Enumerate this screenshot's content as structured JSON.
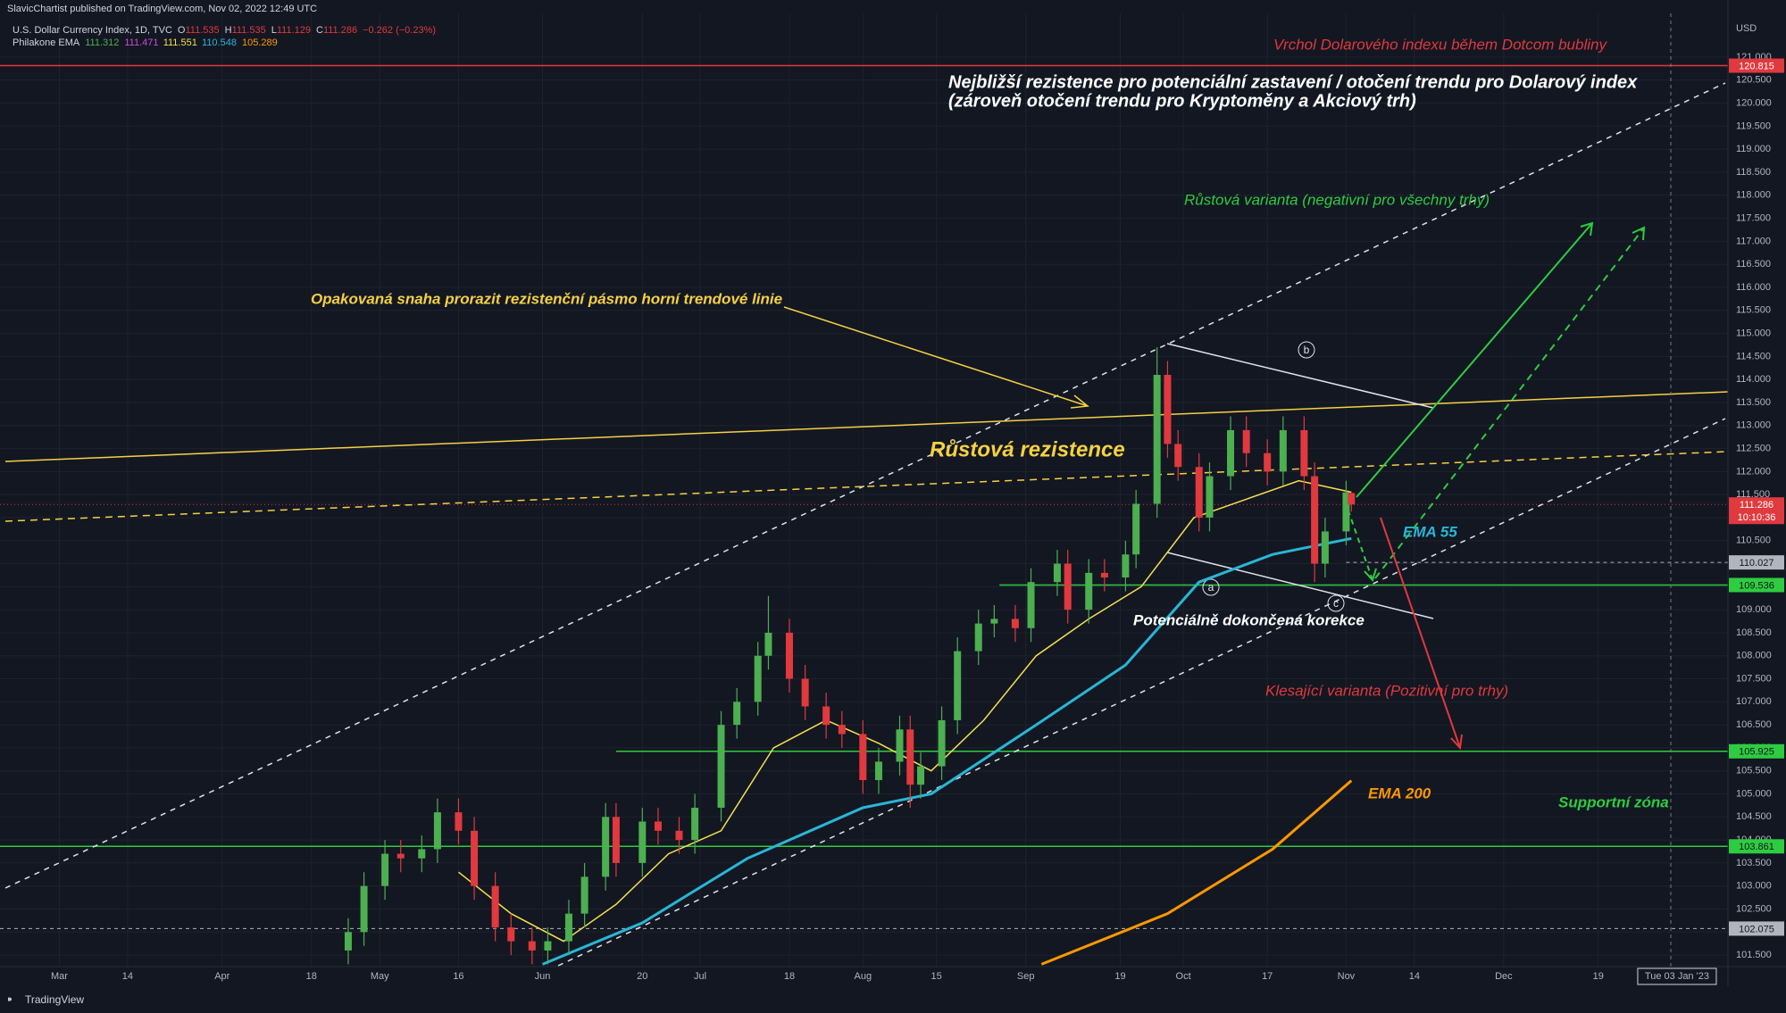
{
  "header": {
    "publisher": "SlavicChartist published on TradingView.com, Nov 02, 2022 12:49 UTC",
    "symbol": "U.S. Dollar Currency Index, 1D, TVC",
    "ohlc": [
      {
        "key": "O",
        "value": "111.535"
      },
      {
        "key": "H",
        "value": "111.535"
      },
      {
        "key": "L",
        "value": "111.129"
      },
      {
        "key": "C",
        "value": "111.286"
      }
    ],
    "change": "−0.262 (−0.23%)",
    "indicator": "Philakone EMA",
    "indicator_values": [
      {
        "text": "111.312",
        "color": "#4caf50"
      },
      {
        "text": "111.471",
        "color": "#c84ddb"
      },
      {
        "text": "111.551",
        "color": "#f5e050"
      },
      {
        "text": "110.548",
        "color": "#29b6d6"
      },
      {
        "text": "105.289",
        "color": "#ff9800"
      }
    ]
  },
  "currency": "USD",
  "footer": "TradingView",
  "waves": [
    "a",
    "b",
    "c"
  ],
  "annotations": [
    "Vrchol Dolarového indexu během Dotcom bubliny",
    "Nejbližší rezistence pro potenciální zastavení / otočení trendu pro Dolarový index",
    "(zároveň otočení trendu pro Kryptoměny a Akciový trh)",
    "Růstová varianta (negativní pro všechny trhy)",
    "Opakovaná snaha prorazit rezistenční pásmo horní trendové linie",
    "Růstová rezistence",
    "Potenciálně dokončená korekce",
    "Klesající varianta (Pozitivní pro trhy)",
    "Supportní zóna"
  ],
  "chart_data": {
    "type": "candlestick",
    "up_color": "#4caf50",
    "down_color": "#e0393e",
    "grid": true,
    "xlim": [
      47.7,
      376.7
    ],
    "ylim": [
      101.25,
      121.95
    ],
    "x": [
      114,
      117,
      121,
      124,
      128,
      131,
      135,
      138,
      142,
      145,
      149,
      152,
      156,
      159,
      163,
      165,
      170,
      173,
      177,
      180,
      185,
      188,
      192,
      194,
      198,
      201,
      205,
      208,
      212,
      215,
      219,
      221,
      223,
      227,
      230,
      234,
      237,
      241,
      244,
      249,
      251,
      255,
      258,
      262,
      264,
      268,
      270,
      272,
      276,
      278,
      282,
      285,
      289,
      292,
      296,
      298,
      300,
      304,
      305
    ],
    "open": [
      101.6,
      102.0,
      103.0,
      103.7,
      103.6,
      103.8,
      104.6,
      104.2,
      103.0,
      102.1,
      101.8,
      101.6,
      101.8,
      102.4,
      103.2,
      104.5,
      103.5,
      104.4,
      104.2,
      104.0,
      104.7,
      106.5,
      107.0,
      108.0,
      108.5,
      107.5,
      106.9,
      106.5,
      106.3,
      105.3,
      105.7,
      106.4,
      105.2,
      105.6,
      106.6,
      108.1,
      108.7,
      108.8,
      108.6,
      109.6,
      110.0,
      109.0,
      109.8,
      109.7,
      110.2,
      111.3,
      114.1,
      112.6,
      112.1,
      111.0,
      111.9,
      112.9,
      112.4,
      112.0,
      112.9,
      111.9,
      110.0,
      110.7,
      111.535
    ],
    "high": [
      102.3,
      103.3,
      104.0,
      104.0,
      104.1,
      104.9,
      104.9,
      104.5,
      103.3,
      102.4,
      102.1,
      102.1,
      102.7,
      103.5,
      104.8,
      104.8,
      104.7,
      104.7,
      104.5,
      105.0,
      106.8,
      107.3,
      108.3,
      109.3,
      108.8,
      107.8,
      107.2,
      106.8,
      106.6,
      106.0,
      106.7,
      106.7,
      105.9,
      106.9,
      108.4,
      109.0,
      109.1,
      109.1,
      109.9,
      110.3,
      110.3,
      110.1,
      110.1,
      110.5,
      111.6,
      114.7,
      114.4,
      112.9,
      112.4,
      112.2,
      113.2,
      113.2,
      112.7,
      113.2,
      113.2,
      112.2,
      111.0,
      111.8,
      111.535
    ],
    "low": [
      101.3,
      101.7,
      102.7,
      103.3,
      103.3,
      103.5,
      103.9,
      102.7,
      101.8,
      101.5,
      101.3,
      101.3,
      101.5,
      102.1,
      102.9,
      103.2,
      103.2,
      103.9,
      103.7,
      103.7,
      104.4,
      106.2,
      106.7,
      107.7,
      107.2,
      106.6,
      106.2,
      106.0,
      105.0,
      105.0,
      105.4,
      104.7,
      104.9,
      105.3,
      106.3,
      107.8,
      108.4,
      108.3,
      108.3,
      109.3,
      108.7,
      108.7,
      109.4,
      109.4,
      109.9,
      111.0,
      112.3,
      111.8,
      110.7,
      110.7,
      111.6,
      112.1,
      111.7,
      111.7,
      111.6,
      109.6,
      109.7,
      110.4,
      111.129
    ],
    "close": [
      102.0,
      103.0,
      103.7,
      103.6,
      103.8,
      104.6,
      104.2,
      103.0,
      102.1,
      101.8,
      101.6,
      101.8,
      102.4,
      103.2,
      104.5,
      103.5,
      104.4,
      104.2,
      104.0,
      104.7,
      106.5,
      107.0,
      108.0,
      108.5,
      107.5,
      106.9,
      106.5,
      106.3,
      105.3,
      105.7,
      106.4,
      105.2,
      105.6,
      106.6,
      108.1,
      108.7,
      108.8,
      108.6,
      109.6,
      110.0,
      109.0,
      109.8,
      109.7,
      110.2,
      111.3,
      114.1,
      112.6,
      112.1,
      111.0,
      111.9,
      112.9,
      112.4,
      112.0,
      112.9,
      111.9,
      110.0,
      110.7,
      111.548,
      111.286
    ],
    "countdown": "10:10:36",
    "series": [
      {
        "name": "EMA 55",
        "color": "#29b6d6",
        "x": [
          151,
          170,
          190,
          212,
          225,
          245,
          262,
          276,
          290,
          305
        ],
        "values": [
          101.3,
          102.2,
          103.6,
          104.7,
          105.0,
          106.5,
          107.8,
          109.6,
          110.2,
          110.548
        ]
      },
      {
        "name": "EMA 200",
        "color": "#ff9800",
        "x": [
          246,
          270,
          290,
          305
        ],
        "values": [
          101.3,
          102.4,
          103.8,
          105.289
        ]
      },
      {
        "color": "#f5e050",
        "x": [
          135,
          145,
          155,
          165,
          175,
          185,
          195,
          205,
          215,
          225,
          235,
          245,
          255,
          265,
          275,
          285,
          295,
          305
        ],
        "values": [
          103.3,
          102.4,
          101.8,
          102.6,
          103.7,
          104.2,
          106.0,
          106.6,
          106.1,
          105.5,
          106.6,
          108.0,
          108.8,
          109.5,
          111.0,
          111.4,
          111.8,
          111.551
        ]
      }
    ],
    "hlines": [
      {
        "value": 120.815,
        "color": "#e0393e",
        "style": "solid"
      },
      {
        "value": 110.027,
        "color": "#b2b5be",
        "style": "dashed",
        "x_start": 304
      },
      {
        "value": 109.536,
        "color": "#2ecc40",
        "style": "solid",
        "x_start": 238
      },
      {
        "value": 105.925,
        "color": "#2ecc40",
        "style": "solid",
        "x_start": 165
      },
      {
        "value": 103.861,
        "color": "#2ecc40",
        "style": "solid"
      },
      {
        "value": 102.075,
        "color": "#b2b5be",
        "style": "dashed"
      }
    ],
    "crosshair": {
      "value": 367,
      "label": "Tue 03 Jan '23"
    },
    "xticks": [
      {
        "value": 59,
        "label": "Mar"
      },
      {
        "value": 72,
        "label": "14"
      },
      {
        "value": 90,
        "label": "Apr"
      },
      {
        "value": 107,
        "label": "18"
      },
      {
        "value": 120,
        "label": "May"
      },
      {
        "value": 135,
        "label": "16"
      },
      {
        "value": 151,
        "label": "Jun"
      },
      {
        "value": 170,
        "label": "20"
      },
      {
        "value": 181,
        "label": "Jul"
      },
      {
        "value": 198,
        "label": "18"
      },
      {
        "value": 212,
        "label": "Aug"
      },
      {
        "value": 226,
        "label": "15"
      },
      {
        "value": 243,
        "label": "Sep"
      },
      {
        "value": 261,
        "label": "19"
      },
      {
        "value": 273,
        "label": "Oct"
      },
      {
        "value": 289,
        "label": "17"
      },
      {
        "value": 304,
        "label": "Nov"
      },
      {
        "value": 317,
        "label": "14"
      },
      {
        "value": 334,
        "label": "Dec"
      },
      {
        "value": 352,
        "label": "19"
      }
    ],
    "yticks": [
      {
        "value": 101.5,
        "label": "101.500"
      },
      {
        "value": 102,
        "label": "102.000"
      },
      {
        "value": 102.5,
        "label": "102.500"
      },
      {
        "value": 103,
        "label": "103.000"
      },
      {
        "value": 103.5,
        "label": "103.500"
      },
      {
        "value": 104,
        "label": "104.000"
      },
      {
        "value": 104.5,
        "label": "104.500"
      },
      {
        "value": 105,
        "label": "105.000"
      },
      {
        "value": 105.5,
        "label": "105.500"
      },
      {
        "value": 106,
        "label": "106.000"
      },
      {
        "value": 106.5,
        "label": "106.500"
      },
      {
        "value": 107,
        "label": "107.000"
      },
      {
        "value": 107.5,
        "label": "107.500"
      },
      {
        "value": 108,
        "label": "108.000"
      },
      {
        "value": 108.5,
        "label": "108.500"
      },
      {
        "value": 109,
        "label": "109.000"
      },
      {
        "value": 109.5,
        "label": "109.500"
      },
      {
        "value": 110,
        "label": "110.000"
      },
      {
        "value": 110.5,
        "label": "110.500"
      },
      {
        "value": 111,
        "label": "111.000"
      },
      {
        "value": 111.5,
        "label": "111.500"
      },
      {
        "value": 112,
        "label": "112.000"
      },
      {
        "value": 112.5,
        "label": "112.500"
      },
      {
        "value": 113,
        "label": "113.000"
      },
      {
        "value": 113.5,
        "label": "113.500"
      },
      {
        "value": 114,
        "label": "114.000"
      },
      {
        "value": 114.5,
        "label": "114.500"
      },
      {
        "value": 115,
        "label": "115.000"
      },
      {
        "value": 115.5,
        "label": "115.500"
      },
      {
        "value": 116,
        "label": "116.000"
      },
      {
        "value": 116.5,
        "label": "116.500"
      },
      {
        "value": 117,
        "label": "117.000"
      },
      {
        "value": 117.5,
        "label": "117.500"
      },
      {
        "value": 118,
        "label": "118.000"
      },
      {
        "value": 118.5,
        "label": "118.500"
      },
      {
        "value": 119,
        "label": "119.000"
      },
      {
        "value": 119.5,
        "label": "119.500"
      },
      {
        "value": 120,
        "label": "120.000"
      },
      {
        "value": 120.5,
        "label": "120.500"
      },
      {
        "value": 121,
        "label": "121.000"
      }
    ]
  }
}
